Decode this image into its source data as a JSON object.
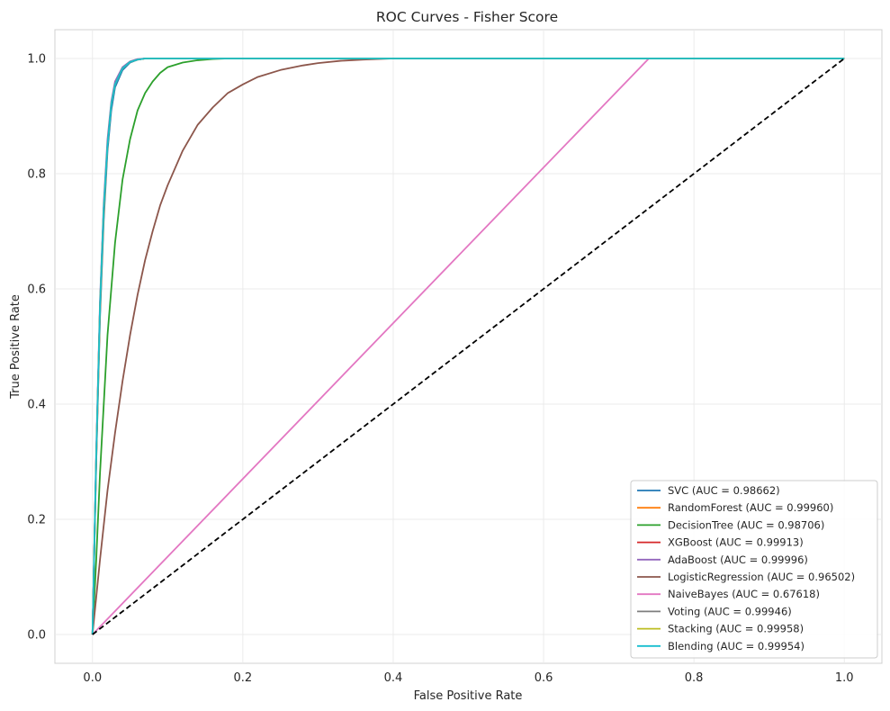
{
  "chart_data": {
    "type": "line",
    "title": "ROC Curves - Fisher Score",
    "xlabel": "False Positive Rate",
    "ylabel": "True Positive Rate",
    "xlim": [
      -0.05,
      1.05
    ],
    "ylim": [
      -0.05,
      1.05
    ],
    "xticks": [
      "0.0",
      "0.2",
      "0.4",
      "0.6",
      "0.8",
      "1.0"
    ],
    "yticks": [
      "0.0",
      "0.2",
      "0.4",
      "0.6",
      "0.8",
      "1.0"
    ],
    "grid": true,
    "legend_position": "lower-right",
    "series": [
      {
        "name": "SVC (AUC = 0.98662)",
        "color": "#1f77b4",
        "x": [
          0,
          0.005,
          0.01,
          0.015,
          0.02,
          0.025,
          0.03,
          0.04,
          0.05,
          0.06,
          0.07,
          0.08,
          0.1,
          0.2,
          0.4,
          1.0
        ],
        "y": [
          0,
          0.3,
          0.55,
          0.72,
          0.84,
          0.91,
          0.95,
          0.98,
          0.993,
          0.998,
          1.0,
          1.0,
          1.0,
          1.0,
          1.0,
          1.0
        ]
      },
      {
        "name": "RandomForest (AUC = 0.99960)",
        "color": "#ff7f0e",
        "x": [
          0,
          0.005,
          0.01,
          0.015,
          0.02,
          0.025,
          0.03,
          0.04,
          0.05,
          0.06,
          0.07,
          0.08,
          0.1,
          0.2,
          0.4,
          1.0
        ],
        "y": [
          0,
          0.3,
          0.56,
          0.73,
          0.85,
          0.92,
          0.955,
          0.983,
          0.994,
          0.998,
          1.0,
          1.0,
          1.0,
          1.0,
          1.0,
          1.0
        ]
      },
      {
        "name": "DecisionTree (AUC = 0.98706)",
        "color": "#2ca02c",
        "x": [
          0,
          0.005,
          0.01,
          0.02,
          0.03,
          0.04,
          0.05,
          0.06,
          0.07,
          0.08,
          0.09,
          0.1,
          0.12,
          0.14,
          0.16,
          0.18,
          0.2,
          0.4,
          1.0
        ],
        "y": [
          0,
          0.13,
          0.28,
          0.52,
          0.68,
          0.79,
          0.86,
          0.91,
          0.94,
          0.96,
          0.975,
          0.985,
          0.993,
          0.997,
          0.999,
          1.0,
          1.0,
          1.0,
          1.0
        ]
      },
      {
        "name": "XGBoost (AUC = 0.99913)",
        "color": "#d62728",
        "x": [
          0,
          0.005,
          0.01,
          0.015,
          0.02,
          0.025,
          0.03,
          0.04,
          0.05,
          0.06,
          0.07,
          0.08,
          0.1,
          0.2,
          0.4,
          1.0
        ],
        "y": [
          0,
          0.31,
          0.57,
          0.74,
          0.85,
          0.92,
          0.955,
          0.983,
          0.994,
          0.998,
          1.0,
          1.0,
          1.0,
          1.0,
          1.0,
          1.0
        ]
      },
      {
        "name": "AdaBoost (AUC = 0.99996)",
        "color": "#9467bd",
        "x": [
          0,
          0.005,
          0.01,
          0.015,
          0.02,
          0.025,
          0.03,
          0.04,
          0.05,
          0.06,
          0.07,
          0.08,
          0.1,
          0.2,
          0.4,
          1.0
        ],
        "y": [
          0,
          0.32,
          0.58,
          0.75,
          0.86,
          0.925,
          0.96,
          0.985,
          0.995,
          0.999,
          1.0,
          1.0,
          1.0,
          1.0,
          1.0,
          1.0
        ]
      },
      {
        "name": "LogisticRegression (AUC = 0.96502)",
        "color": "#8c564b",
        "x": [
          0,
          0.01,
          0.02,
          0.03,
          0.04,
          0.05,
          0.06,
          0.07,
          0.08,
          0.09,
          0.1,
          0.12,
          0.14,
          0.16,
          0.18,
          0.2,
          0.22,
          0.25,
          0.28,
          0.3,
          0.33,
          0.36,
          0.4,
          0.5,
          1.0
        ],
        "y": [
          0,
          0.13,
          0.25,
          0.35,
          0.44,
          0.52,
          0.59,
          0.65,
          0.7,
          0.745,
          0.78,
          0.84,
          0.885,
          0.915,
          0.94,
          0.955,
          0.968,
          0.98,
          0.988,
          0.992,
          0.996,
          0.998,
          1.0,
          1.0,
          1.0
        ]
      },
      {
        "name": "NaiveBayes (AUC = 0.67618)",
        "color": "#e377c2",
        "x": [
          0,
          0.74,
          1.0
        ],
        "y": [
          0,
          1.0,
          1.0
        ]
      },
      {
        "name": "Voting (AUC = 0.99946)",
        "color": "#7f7f7f",
        "x": [
          0,
          0.005,
          0.01,
          0.015,
          0.02,
          0.025,
          0.03,
          0.04,
          0.05,
          0.06,
          0.07,
          0.08,
          0.1,
          0.2,
          0.4,
          1.0
        ],
        "y": [
          0,
          0.31,
          0.57,
          0.74,
          0.85,
          0.92,
          0.955,
          0.983,
          0.994,
          0.998,
          1.0,
          1.0,
          1.0,
          1.0,
          1.0,
          1.0
        ]
      },
      {
        "name": "Stacking (AUC = 0.99958)",
        "color": "#bcbd22",
        "x": [
          0,
          0.005,
          0.01,
          0.015,
          0.02,
          0.025,
          0.03,
          0.04,
          0.05,
          0.06,
          0.07,
          0.08,
          0.1,
          0.2,
          0.4,
          1.0
        ],
        "y": [
          0,
          0.31,
          0.57,
          0.74,
          0.85,
          0.92,
          0.955,
          0.983,
          0.994,
          0.998,
          1.0,
          1.0,
          1.0,
          1.0,
          1.0,
          1.0
        ]
      },
      {
        "name": "Blending (AUC = 0.99954)",
        "color": "#17becf",
        "x": [
          0,
          0.005,
          0.01,
          0.015,
          0.02,
          0.025,
          0.03,
          0.04,
          0.05,
          0.06,
          0.07,
          0.08,
          0.1,
          0.2,
          0.4,
          1.0
        ],
        "y": [
          0,
          0.31,
          0.57,
          0.74,
          0.85,
          0.92,
          0.955,
          0.983,
          0.994,
          0.998,
          1.0,
          1.0,
          1.0,
          1.0,
          1.0,
          1.0
        ]
      }
    ],
    "reference_line": {
      "x": [
        0,
        1
      ],
      "y": [
        0,
        1
      ],
      "color": "#000000",
      "style": "dashed"
    }
  }
}
